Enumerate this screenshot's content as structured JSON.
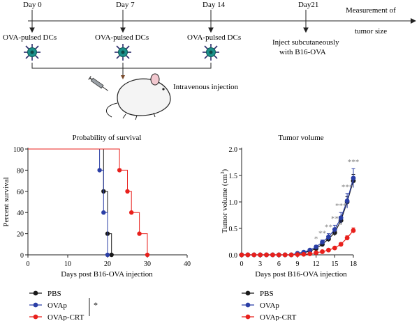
{
  "timeline": {
    "days": [
      "Day 0",
      "Day 7",
      "Day 14",
      "Day21"
    ],
    "measurement_line1": "Measurement of",
    "measurement_line2": "tumor size",
    "dc_label": "OVA-pulsed DCs",
    "inject_line1": "Inject subcutaneously",
    "inject_line2": "with B16-OVA",
    "iv_label": "Intravenous injection"
  },
  "colors": {
    "pbs": "#1a1a1a",
    "ovap": "#2b3fa6",
    "ovap_crt": "#e8201c",
    "dc_cell": "#1a8f8a",
    "star": "#7a7a7a"
  },
  "chart_data": [
    {
      "type": "line",
      "subtype": "step",
      "title": "Probability of survival",
      "xlabel": "Days post B16-OVA injection",
      "ylabel": "Percent survival",
      "xlim": [
        0,
        40
      ],
      "ylim": [
        0,
        100
      ],
      "xticks": [
        0,
        10,
        20,
        30,
        40
      ],
      "yticks": [
        0,
        20,
        40,
        60,
        80,
        100
      ],
      "series": [
        {
          "name": "PBS",
          "x": [
            0,
            19,
            20,
            21
          ],
          "y": [
            100,
            60,
            20,
            0
          ],
          "markers_x": [
            19,
            20,
            21
          ],
          "markers_y": [
            60,
            20,
            0
          ]
        },
        {
          "name": "OVAp",
          "x": [
            0,
            18,
            19,
            20
          ],
          "y": [
            100,
            80,
            40,
            0
          ],
          "markers_x": [
            18,
            19,
            20
          ],
          "markers_y": [
            80,
            40,
            0
          ]
        },
        {
          "name": "OVAp-CRT",
          "x": [
            0,
            23,
            25,
            26,
            28,
            30
          ],
          "y": [
            100,
            80,
            60,
            40,
            20,
            0
          ],
          "markers_x": [
            23,
            25,
            26,
            28,
            30
          ],
          "markers_y": [
            80,
            60,
            40,
            20,
            0
          ]
        }
      ],
      "significance": "*"
    },
    {
      "type": "line",
      "title": "Tumor volume",
      "xlabel": "Days post B16-OVA injection",
      "ylabel_prefix": "Tumor volume (cm",
      "ylabel_sup": "3",
      "ylabel_suffix": ")",
      "xlim": [
        0,
        18
      ],
      "ylim": [
        0,
        2.0
      ],
      "xticks": [
        0,
        3,
        6,
        9,
        12,
        15,
        18
      ],
      "yticks": [
        "0.0",
        "0.5",
        "1.0",
        "1.5",
        "2.0"
      ],
      "x": [
        0,
        1,
        2,
        3,
        4,
        5,
        6,
        7,
        8,
        9,
        10,
        11,
        12,
        13,
        14,
        15,
        16,
        17,
        18
      ],
      "series": [
        {
          "name": "PBS",
          "values": [
            0,
            0,
            0,
            0,
            0,
            0,
            0,
            0,
            0,
            0.02,
            0.04,
            0.07,
            0.12,
            0.2,
            0.3,
            0.42,
            0.65,
            1.0,
            1.4
          ],
          "err": [
            0,
            0,
            0,
            0,
            0,
            0,
            0,
            0,
            0,
            0,
            0,
            0.01,
            0.02,
            0.03,
            0.05,
            0.06,
            0.08,
            0.1,
            0.12
          ]
        },
        {
          "name": "OVAp",
          "values": [
            0,
            0,
            0,
            0,
            0,
            0,
            0,
            0,
            0,
            0.03,
            0.05,
            0.09,
            0.15,
            0.24,
            0.34,
            0.48,
            0.7,
            1.02,
            1.45
          ],
          "err": [
            0,
            0,
            0,
            0,
            0,
            0,
            0,
            0,
            0,
            0,
            0.01,
            0.02,
            0.03,
            0.04,
            0.06,
            0.08,
            0.1,
            0.14,
            0.18
          ]
        },
        {
          "name": "OVAp-CRT",
          "values": [
            0,
            0,
            0,
            0,
            0,
            0,
            0,
            0,
            0,
            0.005,
            0.01,
            0.02,
            0.04,
            0.06,
            0.09,
            0.13,
            0.2,
            0.32,
            0.46
          ],
          "err": [
            0,
            0,
            0,
            0,
            0,
            0,
            0,
            0,
            0,
            0,
            0,
            0,
            0.01,
            0.01,
            0.01,
            0.02,
            0.03,
            0.04,
            0.05
          ]
        }
      ],
      "annotations": [
        {
          "x": 12,
          "text": "*"
        },
        {
          "x": 13,
          "text": "**"
        },
        {
          "x": 14,
          "text": "**"
        },
        {
          "x": 15,
          "text": "**"
        },
        {
          "x": 16,
          "text": "***"
        },
        {
          "x": 17,
          "text": "***"
        },
        {
          "x": 18,
          "text": "***"
        }
      ]
    }
  ],
  "legend": [
    "PBS",
    "OVAp",
    "OVAp-CRT"
  ]
}
